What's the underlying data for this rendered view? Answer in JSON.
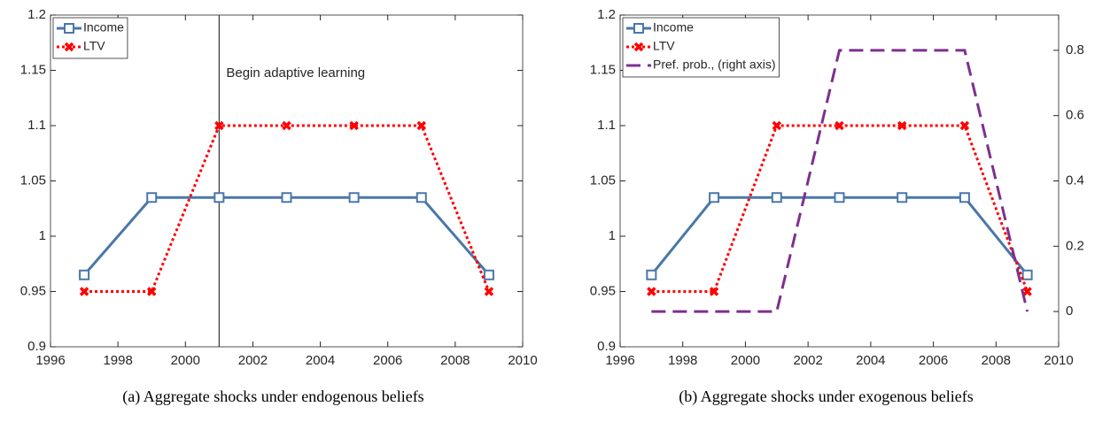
{
  "chart_data": [
    {
      "type": "line",
      "caption": "(a) Aggregate shocks under endogenous beliefs",
      "x": [
        1997,
        1999,
        2001,
        2003,
        2005,
        2007,
        2009
      ],
      "series": [
        {
          "name": "Income",
          "color": "#4a77aa",
          "values": [
            0.965,
            1.035,
            1.035,
            1.035,
            1.035,
            1.035,
            0.965
          ]
        },
        {
          "name": "LTV",
          "color": "#ff0000",
          "values": [
            0.95,
            0.95,
            1.1,
            1.1,
            1.1,
            1.1,
            0.95
          ]
        }
      ],
      "xlim": [
        1996,
        2010
      ],
      "xticks": [
        1996,
        1998,
        2000,
        2002,
        2004,
        2006,
        2008,
        2010
      ],
      "ylim": [
        0.9,
        1.2
      ],
      "yticks": [
        0.9,
        0.95,
        1,
        1.05,
        1.1,
        1.15,
        1.2
      ],
      "annotations": [
        {
          "x": 2001,
          "text": "Begin adaptive learning"
        }
      ],
      "legend": "upper left"
    },
    {
      "type": "line",
      "caption": "(b) Aggregate shocks under exogenous beliefs",
      "x": [
        1997,
        1999,
        2001,
        2003,
        2005,
        2007,
        2009
      ],
      "series": [
        {
          "name": "Income",
          "color": "#4a77aa",
          "values": [
            0.965,
            1.035,
            1.035,
            1.035,
            1.035,
            1.035,
            0.965
          ]
        },
        {
          "name": "LTV",
          "color": "#ff0000",
          "values": [
            0.95,
            0.95,
            1.1,
            1.1,
            1.1,
            1.1,
            0.95
          ]
        },
        {
          "name": "Pref. prob., (right axis)",
          "color": "#7e2f8e",
          "axis": "y2",
          "values": [
            0,
            0,
            0,
            0.8,
            0.8,
            0.8,
            0
          ]
        }
      ],
      "xlim": [
        1996,
        2010
      ],
      "xticks": [
        1996,
        1998,
        2000,
        2002,
        2004,
        2006,
        2008,
        2010
      ],
      "ylim": [
        0.9,
        1.2
      ],
      "yticks": [
        0.9,
        0.95,
        1,
        1.05,
        1.1,
        1.15,
        1.2
      ],
      "y2lim": [
        -0.108,
        0.908
      ],
      "y2ticks": [
        0,
        0.2,
        0.4,
        0.6,
        0.8
      ],
      "legend": "upper left"
    }
  ]
}
